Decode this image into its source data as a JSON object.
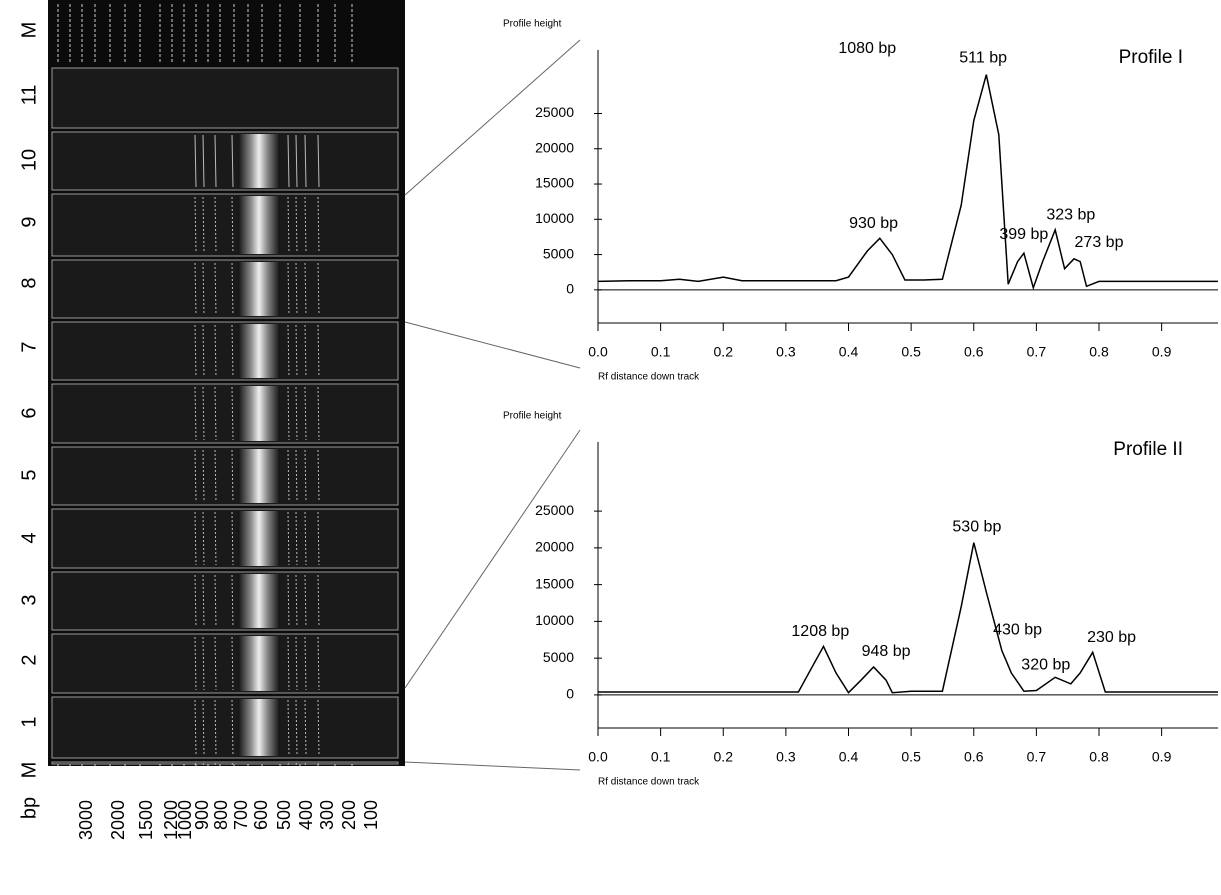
{
  "gel": {
    "lanes": [
      "M",
      "11",
      "10",
      "9",
      "8",
      "7",
      "6",
      "5",
      "4",
      "3",
      "2",
      "1",
      "M"
    ],
    "unit": "bp",
    "markers": [
      "3000",
      "2000",
      "1500",
      "1200",
      "1000",
      "900",
      "800",
      "700",
      "600",
      "500",
      "400",
      "300",
      "200",
      "100"
    ]
  },
  "chart_data": [
    {
      "type": "line",
      "title": "Profile I",
      "ylabel": "Profile height",
      "xlabel": "Rf distance down track",
      "color": "#000000",
      "x": [
        0,
        0.05,
        0.1,
        0.13,
        0.16,
        0.2,
        0.23,
        0.3,
        0.38,
        0.4,
        0.43,
        0.45,
        0.47,
        0.49,
        0.52,
        0.55,
        0.58,
        0.6,
        0.62,
        0.64,
        0.655,
        0.67,
        0.68,
        0.695,
        0.71,
        0.73,
        0.745,
        0.76,
        0.77,
        0.78,
        0.8,
        0.9,
        0.99
      ],
      "values": [
        1200,
        1300,
        1300,
        1500,
        1200,
        1800,
        1300,
        1300,
        1300,
        1800,
        5500,
        7300,
        5000,
        1400,
        1400,
        1500,
        12000,
        24000,
        30500,
        22000,
        800,
        4000,
        5200,
        300,
        4000,
        8500,
        3000,
        4400,
        4000,
        500,
        1200,
        1200,
        1200
      ],
      "xlim": [
        0,
        0.99
      ],
      "ylim": [
        -4700,
        34000
      ],
      "xticks": [
        {
          "value": 0,
          "label": "0.0"
        },
        0.1,
        0.2,
        0.3,
        0.4,
        0.5,
        0.6,
        0.7,
        0.8,
        0.9
      ],
      "yticks": [
        0,
        5000,
        10000,
        15000,
        20000,
        25000
      ],
      "annotations": [
        {
          "text": "1080 bp",
          "x": 0.43,
          "y": 34200
        },
        {
          "text": "511 bp",
          "x": 0.615,
          "y": 32800
        },
        {
          "text": "930 bp",
          "x": 0.44,
          "y": 9400
        },
        {
          "text": "399 bp",
          "x": 0.68,
          "y": 7800
        },
        {
          "text": "323 bp",
          "x": 0.755,
          "y": 10600
        },
        {
          "text": "273 bp",
          "x": 0.8,
          "y": 6700
        }
      ]
    },
    {
      "type": "line",
      "title": "Profile II",
      "ylabel": "Profile height",
      "xlabel": "Rf distance down track",
      "color": "#000000",
      "x": [
        0,
        0.1,
        0.2,
        0.32,
        0.34,
        0.36,
        0.38,
        0.4,
        0.42,
        0.44,
        0.46,
        0.47,
        0.5,
        0.55,
        0.58,
        0.6,
        0.62,
        0.645,
        0.65,
        0.66,
        0.68,
        0.7,
        0.73,
        0.755,
        0.77,
        0.79,
        0.81,
        0.9,
        0.99
      ],
      "values": [
        400,
        400,
        400,
        400,
        3500,
        6600,
        3000,
        300,
        2000,
        3800,
        2000,
        300,
        500,
        500,
        12000,
        20700,
        14000,
        6000,
        5000,
        3000,
        500,
        600,
        2400,
        1500,
        3000,
        5800,
        400,
        400,
        400
      ],
      "xlim": [
        0,
        0.99
      ],
      "ylim": [
        -4500,
        34400
      ],
      "xticks": [
        {
          "value": 0,
          "label": "0.0"
        },
        0.1,
        0.2,
        0.3,
        0.4,
        0.5,
        0.6,
        0.7,
        0.8,
        0.9
      ],
      "yticks": [
        0,
        5000,
        10000,
        15000,
        20000,
        25000
      ],
      "annotations": [
        {
          "text": "1208 bp",
          "x": 0.355,
          "y": 8600
        },
        {
          "text": "948 bp",
          "x": 0.46,
          "y": 5900
        },
        {
          "text": "530 bp",
          "x": 0.605,
          "y": 22800
        },
        {
          "text": "430 bp",
          "x": 0.67,
          "y": 8800
        },
        {
          "text": "320 bp",
          "x": 0.715,
          "y": 4000
        },
        {
          "text": "230 bp",
          "x": 0.82,
          "y": 7800
        }
      ]
    }
  ]
}
